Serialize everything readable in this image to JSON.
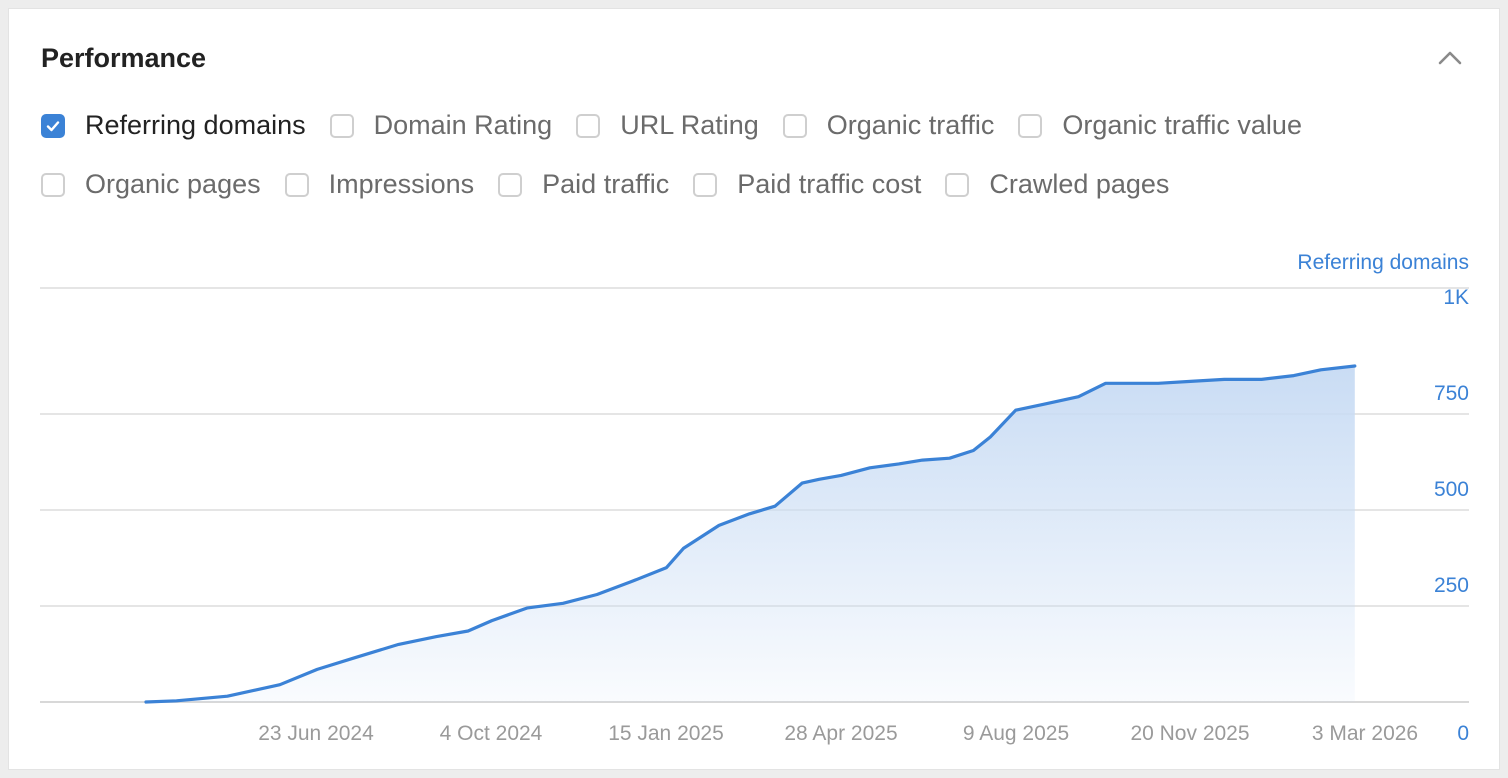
{
  "panel": {
    "title": "Performance"
  },
  "colors": {
    "accent": "#3b82d6",
    "area_top": "#c9dcf4",
    "grid": "#e5e5e5",
    "tick": "#9a9a9a"
  },
  "metrics_row1": [
    {
      "label": "Referring domains",
      "checked": true
    },
    {
      "label": "Domain Rating",
      "checked": false
    },
    {
      "label": "URL Rating",
      "checked": false
    },
    {
      "label": "Organic traffic",
      "checked": false
    },
    {
      "label": "Organic traffic value",
      "checked": false
    }
  ],
  "metrics_row2": [
    {
      "label": "Organic pages",
      "checked": false
    },
    {
      "label": "Impressions",
      "checked": false
    },
    {
      "label": "Paid traffic",
      "checked": false
    },
    {
      "label": "Paid traffic cost",
      "checked": false
    },
    {
      "label": "Crawled pages",
      "checked": false
    }
  ],
  "chart_data": {
    "type": "area",
    "series": [
      {
        "name": "Referring domains",
        "x": [
          "2024-03-14",
          "2024-04-01",
          "2024-05-01",
          "2024-06-01",
          "2024-06-23",
          "2024-07-15",
          "2024-08-10",
          "2024-09-01",
          "2024-09-20",
          "2024-10-04",
          "2024-10-25",
          "2024-11-15",
          "2024-12-05",
          "2024-12-25",
          "2025-01-15",
          "2025-01-25",
          "2025-02-15",
          "2025-03-05",
          "2025-03-20",
          "2025-04-05",
          "2025-04-15",
          "2025-04-28",
          "2025-05-15",
          "2025-06-01",
          "2025-06-15",
          "2025-07-01",
          "2025-07-15",
          "2025-07-25",
          "2025-08-09",
          "2025-08-25",
          "2025-09-15",
          "2025-10-01",
          "2025-10-15",
          "2025-11-01",
          "2025-11-20",
          "2025-12-10",
          "2026-01-01",
          "2026-01-20",
          "2026-02-05",
          "2026-02-25"
        ],
        "y": [
          0,
          3,
          15,
          45,
          85,
          115,
          150,
          170,
          185,
          212,
          245,
          257,
          280,
          313,
          350,
          400,
          460,
          490,
          510,
          570,
          580,
          590,
          610,
          620,
          630,
          635,
          655,
          690,
          760,
          775,
          795,
          830,
          830,
          830,
          835,
          840,
          840,
          850,
          865,
          875
        ]
      }
    ],
    "x_ticks": [
      "23 Jun 2024",
      "4 Oct 2024",
      "15 Jan 2025",
      "28 Apr 2025",
      "9 Aug 2025",
      "20 Nov 2025",
      "3 Mar 2026"
    ],
    "y_ticks": [
      "0",
      "250",
      "500",
      "750",
      "1K"
    ],
    "ylim": [
      0,
      1000
    ],
    "xlim": [
      "2024-03-14",
      "2026-03-03"
    ],
    "series_label": "Referring domains",
    "y_axis_position": "right",
    "grid": true
  }
}
